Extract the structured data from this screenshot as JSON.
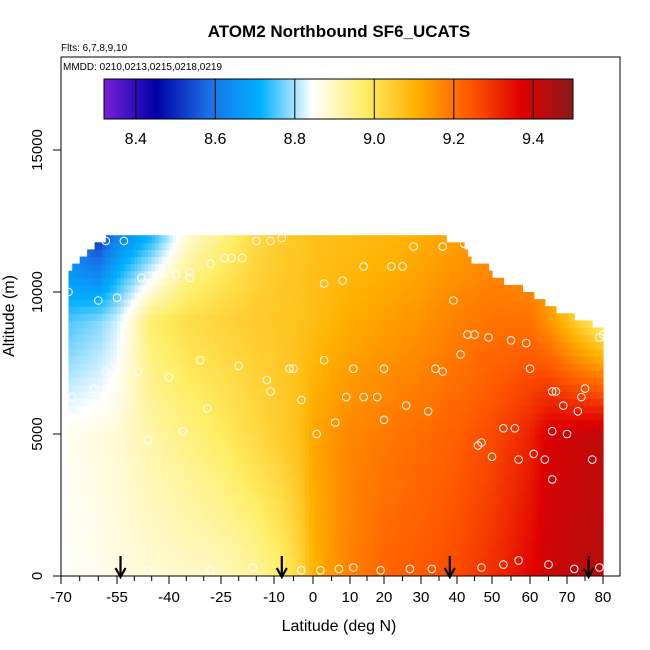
{
  "chart_data": {
    "type": "heatmap",
    "title": "ATOM2 Northbound SF6_UCATS",
    "subtitle_flights": "Flts: 6,7,8,9,10",
    "subtitle_dates": "MMDD: 0210,0213,0215,0218,0219",
    "xlabel": "Latitude (deg N)",
    "ylabel": "Altitude (m)",
    "xlim": [
      -70,
      80
    ],
    "ylim": [
      0,
      17500
    ],
    "x_ticks": [
      -70,
      -55,
      -40,
      -25,
      -10,
      0,
      10,
      20,
      30,
      40,
      50,
      60,
      70,
      80
    ],
    "x_tick_labels": [
      "-70",
      "-55",
      "-40",
      "-25",
      "-10",
      "0",
      "10",
      "20",
      "30",
      "40",
      "50",
      "60",
      "70",
      "80"
    ],
    "x_minor_ticks": [
      -65,
      -60,
      -50,
      -45,
      -35,
      -30,
      -20,
      -15,
      -5,
      5,
      15,
      25,
      35,
      45,
      55,
      65,
      75
    ],
    "y_ticks": [
      0,
      5000,
      10000,
      15000
    ],
    "y_tick_labels": [
      "0",
      "5000",
      "10000",
      "15000"
    ],
    "colorbar": {
      "min": 8.32,
      "max": 9.5,
      "ticks": [
        8.4,
        8.6,
        8.8,
        9.0,
        9.2,
        9.4
      ],
      "tick_labels": [
        "8.4",
        "8.6",
        "8.8",
        "9.0",
        "9.2",
        "9.4"
      ],
      "colors": [
        "#7a1fd6",
        "#0000a8",
        "#1a6fe6",
        "#00b0ff",
        "#ffffff",
        "#ffee66",
        "#ffb000",
        "#ff5a00",
        "#e00000",
        "#8b1a1a"
      ]
    },
    "arrows_lat": [
      -54,
      -8,
      38,
      76
    ],
    "coverage_top": [
      [
        -68,
        10500
      ],
      [
        -66,
        11000
      ],
      [
        -62,
        11500
      ],
      [
        -58,
        11900
      ],
      [
        -55,
        11900
      ],
      [
        -30,
        11900
      ],
      [
        20,
        11900
      ],
      [
        30,
        11900
      ],
      [
        35,
        11900
      ],
      [
        42,
        11800
      ],
      [
        44,
        11000
      ],
      [
        48,
        11000
      ],
      [
        50,
        10500
      ],
      [
        55,
        10300
      ],
      [
        60,
        10000
      ],
      [
        65,
        9500
      ],
      [
        68,
        9300
      ],
      [
        75,
        9000
      ],
      [
        78,
        8800
      ],
      [
        80,
        8600
      ]
    ],
    "field_profiles": [
      {
        "lat": -68,
        "points": [
          [
            0,
            8.85
          ],
          [
            5000,
            8.86
          ],
          [
            9000,
            8.75
          ],
          [
            12000,
            8.6
          ]
        ]
      },
      {
        "lat": -60,
        "points": [
          [
            0,
            8.86
          ],
          [
            5000,
            8.87
          ],
          [
            9000,
            8.78
          ],
          [
            12000,
            8.5
          ]
        ]
      },
      {
        "lat": -55,
        "points": [
          [
            0,
            8.87
          ],
          [
            5000,
            8.88
          ],
          [
            9000,
            8.82
          ],
          [
            12000,
            8.62
          ]
        ]
      },
      {
        "lat": -45,
        "points": [
          [
            0,
            8.88
          ],
          [
            5000,
            8.92
          ],
          [
            9000,
            8.97
          ],
          [
            12000,
            8.72
          ]
        ]
      },
      {
        "lat": -35,
        "points": [
          [
            0,
            8.89
          ],
          [
            5000,
            8.95
          ],
          [
            9000,
            9.01
          ],
          [
            12000,
            8.88
          ]
        ]
      },
      {
        "lat": -25,
        "points": [
          [
            0,
            8.9
          ],
          [
            5000,
            8.98
          ],
          [
            9000,
            9.03
          ],
          [
            12000,
            8.95
          ]
        ]
      },
      {
        "lat": -15,
        "points": [
          [
            0,
            8.93
          ],
          [
            5000,
            9.02
          ],
          [
            9000,
            9.05
          ],
          [
            12000,
            9.02
          ]
        ]
      },
      {
        "lat": -8,
        "points": [
          [
            0,
            8.97
          ],
          [
            5000,
            9.05
          ],
          [
            9000,
            9.06
          ],
          [
            12000,
            9.05
          ]
        ]
      },
      {
        "lat": -3,
        "points": [
          [
            0,
            9.03
          ],
          [
            5000,
            9.08
          ],
          [
            9000,
            9.07
          ],
          [
            12000,
            9.06
          ]
        ]
      },
      {
        "lat": 0,
        "points": [
          [
            0,
            9.1
          ],
          [
            5000,
            9.12
          ],
          [
            9000,
            9.08
          ],
          [
            12000,
            9.07
          ]
        ]
      },
      {
        "lat": 10,
        "points": [
          [
            0,
            9.18
          ],
          [
            5000,
            9.17
          ],
          [
            9000,
            9.11
          ],
          [
            12000,
            9.08
          ]
        ]
      },
      {
        "lat": 20,
        "points": [
          [
            0,
            9.22
          ],
          [
            5000,
            9.19
          ],
          [
            9000,
            9.13
          ],
          [
            12000,
            9.09
          ]
        ]
      },
      {
        "lat": 30,
        "points": [
          [
            0,
            9.24
          ],
          [
            5000,
            9.21
          ],
          [
            9000,
            9.15
          ],
          [
            12000,
            9.11
          ]
        ]
      },
      {
        "lat": 40,
        "points": [
          [
            0,
            9.26
          ],
          [
            5000,
            9.23
          ],
          [
            9000,
            9.18
          ],
          [
            12000,
            9.13
          ]
        ]
      },
      {
        "lat": 50,
        "points": [
          [
            0,
            9.3
          ],
          [
            5000,
            9.26
          ],
          [
            9000,
            9.2
          ],
          [
            12000,
            9.15
          ]
        ]
      },
      {
        "lat": 60,
        "points": [
          [
            0,
            9.36
          ],
          [
            5000,
            9.32
          ],
          [
            9000,
            9.2
          ],
          [
            12000,
            9.13
          ]
        ]
      },
      {
        "lat": 65,
        "points": [
          [
            0,
            9.4
          ],
          [
            5000,
            9.38
          ],
          [
            9000,
            9.15
          ],
          [
            12000,
            9.1
          ]
        ]
      },
      {
        "lat": 72,
        "points": [
          [
            0,
            9.42
          ],
          [
            5000,
            9.4
          ],
          [
            9000,
            9.05
          ],
          [
            12000,
            9.0
          ]
        ]
      },
      {
        "lat": 80,
        "points": [
          [
            0,
            9.43
          ],
          [
            5000,
            9.42
          ],
          [
            9000,
            8.95
          ],
          [
            12000,
            8.9
          ]
        ]
      }
    ],
    "sample_points": [
      [
        -68,
        200
      ],
      [
        -65,
        200
      ],
      [
        -61,
        300
      ],
      [
        -46,
        200
      ],
      [
        -28,
        200
      ],
      [
        -16,
        300
      ],
      [
        -3,
        200
      ],
      [
        2,
        200
      ],
      [
        7,
        250
      ],
      [
        11,
        300
      ],
      [
        19,
        200
      ],
      [
        27,
        250
      ],
      [
        33,
        250
      ],
      [
        47,
        300
      ],
      [
        53,
        400
      ],
      [
        57,
        550
      ],
      [
        65,
        400
      ],
      [
        72,
        250
      ],
      [
        79,
        300
      ],
      [
        -67,
        5000
      ],
      [
        -59,
        5800
      ],
      [
        -63,
        5600
      ],
      [
        -46,
        4800
      ],
      [
        -36,
        5100
      ],
      [
        -29,
        5900
      ],
      [
        -11,
        6500
      ],
      [
        -6,
        7300
      ],
      [
        -3,
        6200
      ],
      [
        1,
        5000
      ],
      [
        6,
        5400
      ],
      [
        9,
        6300
      ],
      [
        14,
        6300
      ],
      [
        18,
        6300
      ],
      [
        20,
        5500
      ],
      [
        26,
        6000
      ],
      [
        32,
        5800
      ],
      [
        34,
        7300
      ],
      [
        36,
        7200
      ],
      [
        46,
        4600
      ],
      [
        47,
        4700
      ],
      [
        50,
        4200
      ],
      [
        53,
        5200
      ],
      [
        56,
        5200
      ],
      [
        57,
        4100
      ],
      [
        60,
        7300
      ],
      [
        61,
        4300
      ],
      [
        64,
        4100
      ],
      [
        66,
        5100
      ],
      [
        66,
        6500
      ],
      [
        67,
        6500
      ],
      [
        70,
        5000
      ],
      [
        73,
        5800
      ],
      [
        75,
        6600
      ],
      [
        77,
        4100
      ],
      [
        66,
        3400
      ],
      [
        -67,
        6300
      ],
      [
        -61,
        6600
      ],
      [
        -58,
        7200
      ],
      [
        -49,
        7200
      ],
      [
        -40,
        7000
      ],
      [
        -31,
        7600
      ],
      [
        -20,
        7400
      ],
      [
        -12,
        6900
      ],
      [
        -5,
        7300
      ],
      [
        3,
        7600
      ],
      [
        11,
        7300
      ],
      [
        20,
        7300
      ],
      [
        -60,
        9700
      ],
      [
        -55,
        9800
      ],
      [
        -48,
        10500
      ],
      [
        -43,
        10600
      ],
      [
        -38,
        10600
      ],
      [
        -34,
        10700
      ],
      [
        3,
        10300
      ],
      [
        8,
        10400
      ],
      [
        14,
        10900
      ],
      [
        22,
        10900
      ],
      [
        25,
        10900
      ],
      [
        39,
        9700
      ],
      [
        41,
        7800
      ],
      [
        43,
        8500
      ],
      [
        45,
        8500
      ],
      [
        49,
        8400
      ],
      [
        55,
        8300
      ],
      [
        59,
        8200
      ],
      [
        69,
        6000
      ],
      [
        74,
        6300
      ],
      [
        -68,
        10000
      ],
      [
        -58,
        11800
      ],
      [
        -53,
        11800
      ],
      [
        -24,
        11200
      ],
      [
        -22,
        11200
      ],
      [
        -19,
        11200
      ],
      [
        -15,
        11800
      ],
      [
        -11,
        11800
      ],
      [
        -8,
        11900
      ],
      [
        28,
        11600
      ],
      [
        36,
        11600
      ],
      [
        42,
        11700
      ],
      [
        -34,
        10500
      ],
      [
        -28,
        11000
      ],
      [
        -46,
        10200
      ],
      [
        80,
        8500
      ],
      [
        79,
        8400
      ]
    ]
  }
}
